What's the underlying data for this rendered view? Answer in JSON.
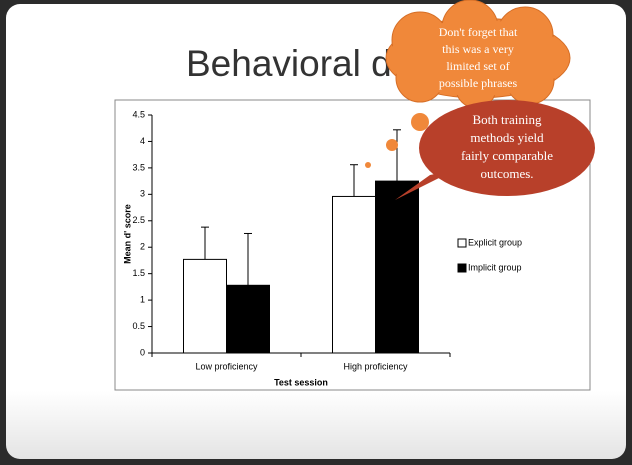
{
  "slide_title": "Behavioral d",
  "chart_data": {
    "type": "bar",
    "categories": [
      "Low proficiency",
      "High proficiency"
    ],
    "series": [
      {
        "name": "Explicit group",
        "color": "#ffffff",
        "values": [
          1.77,
          2.96
        ],
        "errors": [
          0.61,
          0.6
        ]
      },
      {
        "name": "Implicit group",
        "color": "#000000",
        "values": [
          1.28,
          3.25
        ],
        "errors": [
          0.98,
          0.97
        ]
      }
    ],
    "ylim": [
      0,
      4.5
    ],
    "yticks": [
      0,
      0.5,
      1,
      1.5,
      2,
      2.5,
      3,
      3.5,
      4,
      4.5
    ],
    "x_label": "Test session",
    "y_label": "Mean d' score",
    "legend": "right"
  },
  "annotations": [
    {
      "lines": [
        "Don't forget that",
        "this was a very",
        "limited  set of",
        "possible phrases"
      ]
    },
    {
      "lines": [
        "Both training",
        "methods yield",
        "fairly comparable",
        "outcomes."
      ]
    }
  ]
}
